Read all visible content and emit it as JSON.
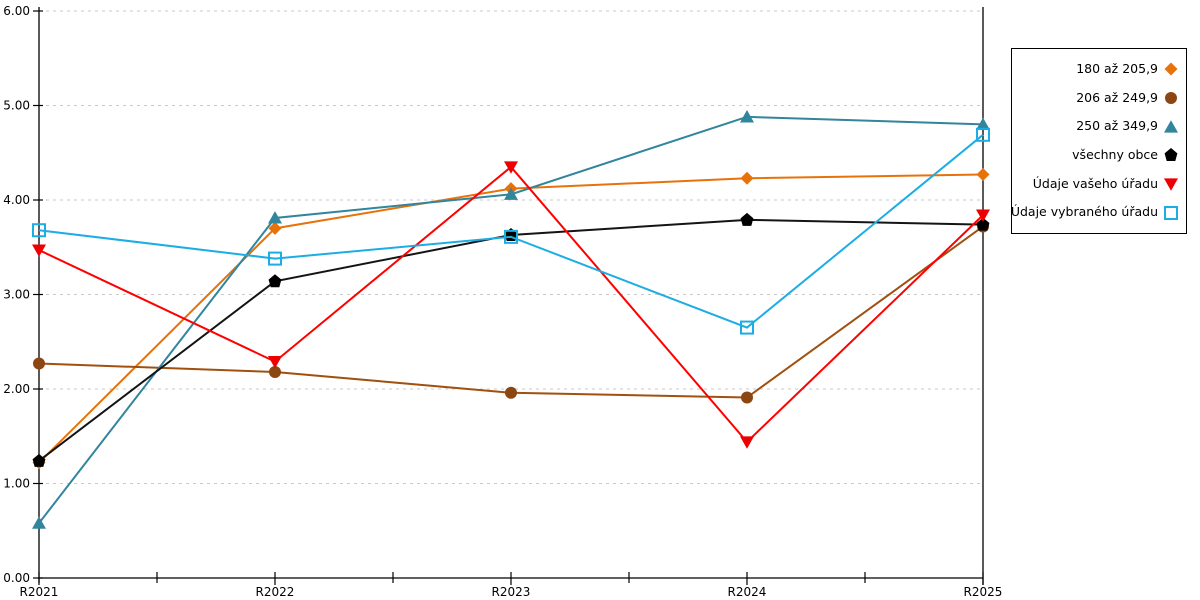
{
  "chart_data": {
    "type": "line",
    "title": "",
    "xlabel": "",
    "ylabel": "",
    "categories": [
      "R2021",
      "R2022",
      "R2023",
      "R2024",
      "R2025"
    ],
    "y_tick_labels": [
      "0.00",
      "1.00",
      "2.00",
      "3.00",
      "4.00",
      "5.00",
      "6.00"
    ],
    "ylim": [
      0,
      6
    ],
    "grid": "horizontal dashed gridlines at every 1.00",
    "legend_position": "right",
    "colors": {
      "gridline": "#c9c9c9",
      "axis": "#000000",
      "background": "#ffffff"
    },
    "series": [
      {
        "name": "180 až 205,9",
        "marker": "diamond",
        "color": "#E8720A",
        "marker_color": "#E8720A",
        "values": [
          1.22,
          3.7,
          4.12,
          4.23,
          4.27
        ]
      },
      {
        "name": "206 až 249,9",
        "marker": "circle",
        "color": "#A0500F",
        "marker_color": "#8C4612",
        "values": [
          2.27,
          2.18,
          1.96,
          1.91,
          3.72
        ]
      },
      {
        "name": "250 až 349,9",
        "marker": "triangle-up",
        "color": "#31859C",
        "marker_color": "#31859C",
        "values": [
          0.58,
          3.81,
          4.06,
          4.88,
          4.8
        ]
      },
      {
        "name": "všechny obce",
        "marker": "pentagon",
        "color": "#141414",
        "marker_color": "#000000",
        "values": [
          1.24,
          3.14,
          3.63,
          3.79,
          3.74
        ]
      },
      {
        "name": "Údaje vašeho úřadu",
        "marker": "triangle-down",
        "color": "#FF0000",
        "marker_color": "#EE0000",
        "values": [
          3.47,
          2.29,
          4.35,
          1.44,
          3.84
        ]
      },
      {
        "name": "Údaje vybraného úřadu",
        "marker": "square-open",
        "color": "#1CADE4",
        "marker_color": "#1CADE4",
        "values": [
          3.68,
          3.38,
          3.61,
          2.65,
          4.69
        ]
      }
    ]
  }
}
